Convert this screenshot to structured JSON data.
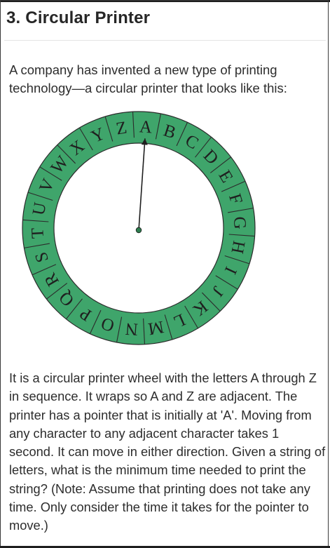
{
  "heading": "3. Circular Printer",
  "intro": "A company has invented a new type of printing technology—a circular printer that looks like this:",
  "wheel": {
    "letters": [
      "A",
      "B",
      "C",
      "D",
      "E",
      "F",
      "G",
      "H",
      "I",
      "J",
      "K",
      "L",
      "M",
      "N",
      "O",
      "P",
      "Q",
      "R",
      "S",
      "T",
      "U",
      "V",
      "W",
      "X",
      "Y",
      "Z"
    ],
    "ring_color": "#3fa56b",
    "inner_color": "#ffffff",
    "pointer_color": "#1f1f1f",
    "pivot_color": "#2e7d4f",
    "pointer_target": "A"
  },
  "description": "It is a circular printer wheel with the letters A through Z in sequence.  It wraps so A and Z are adjacent. The printer has a pointer that is initially at 'A'. Moving from any character to any adjacent character takes 1 second. It can move in either direction. Given a string of letters, what is the minimum time needed to print the string? (Note: Assume that printing does not take any time. Only consider the time it takes for the pointer to move.)"
}
